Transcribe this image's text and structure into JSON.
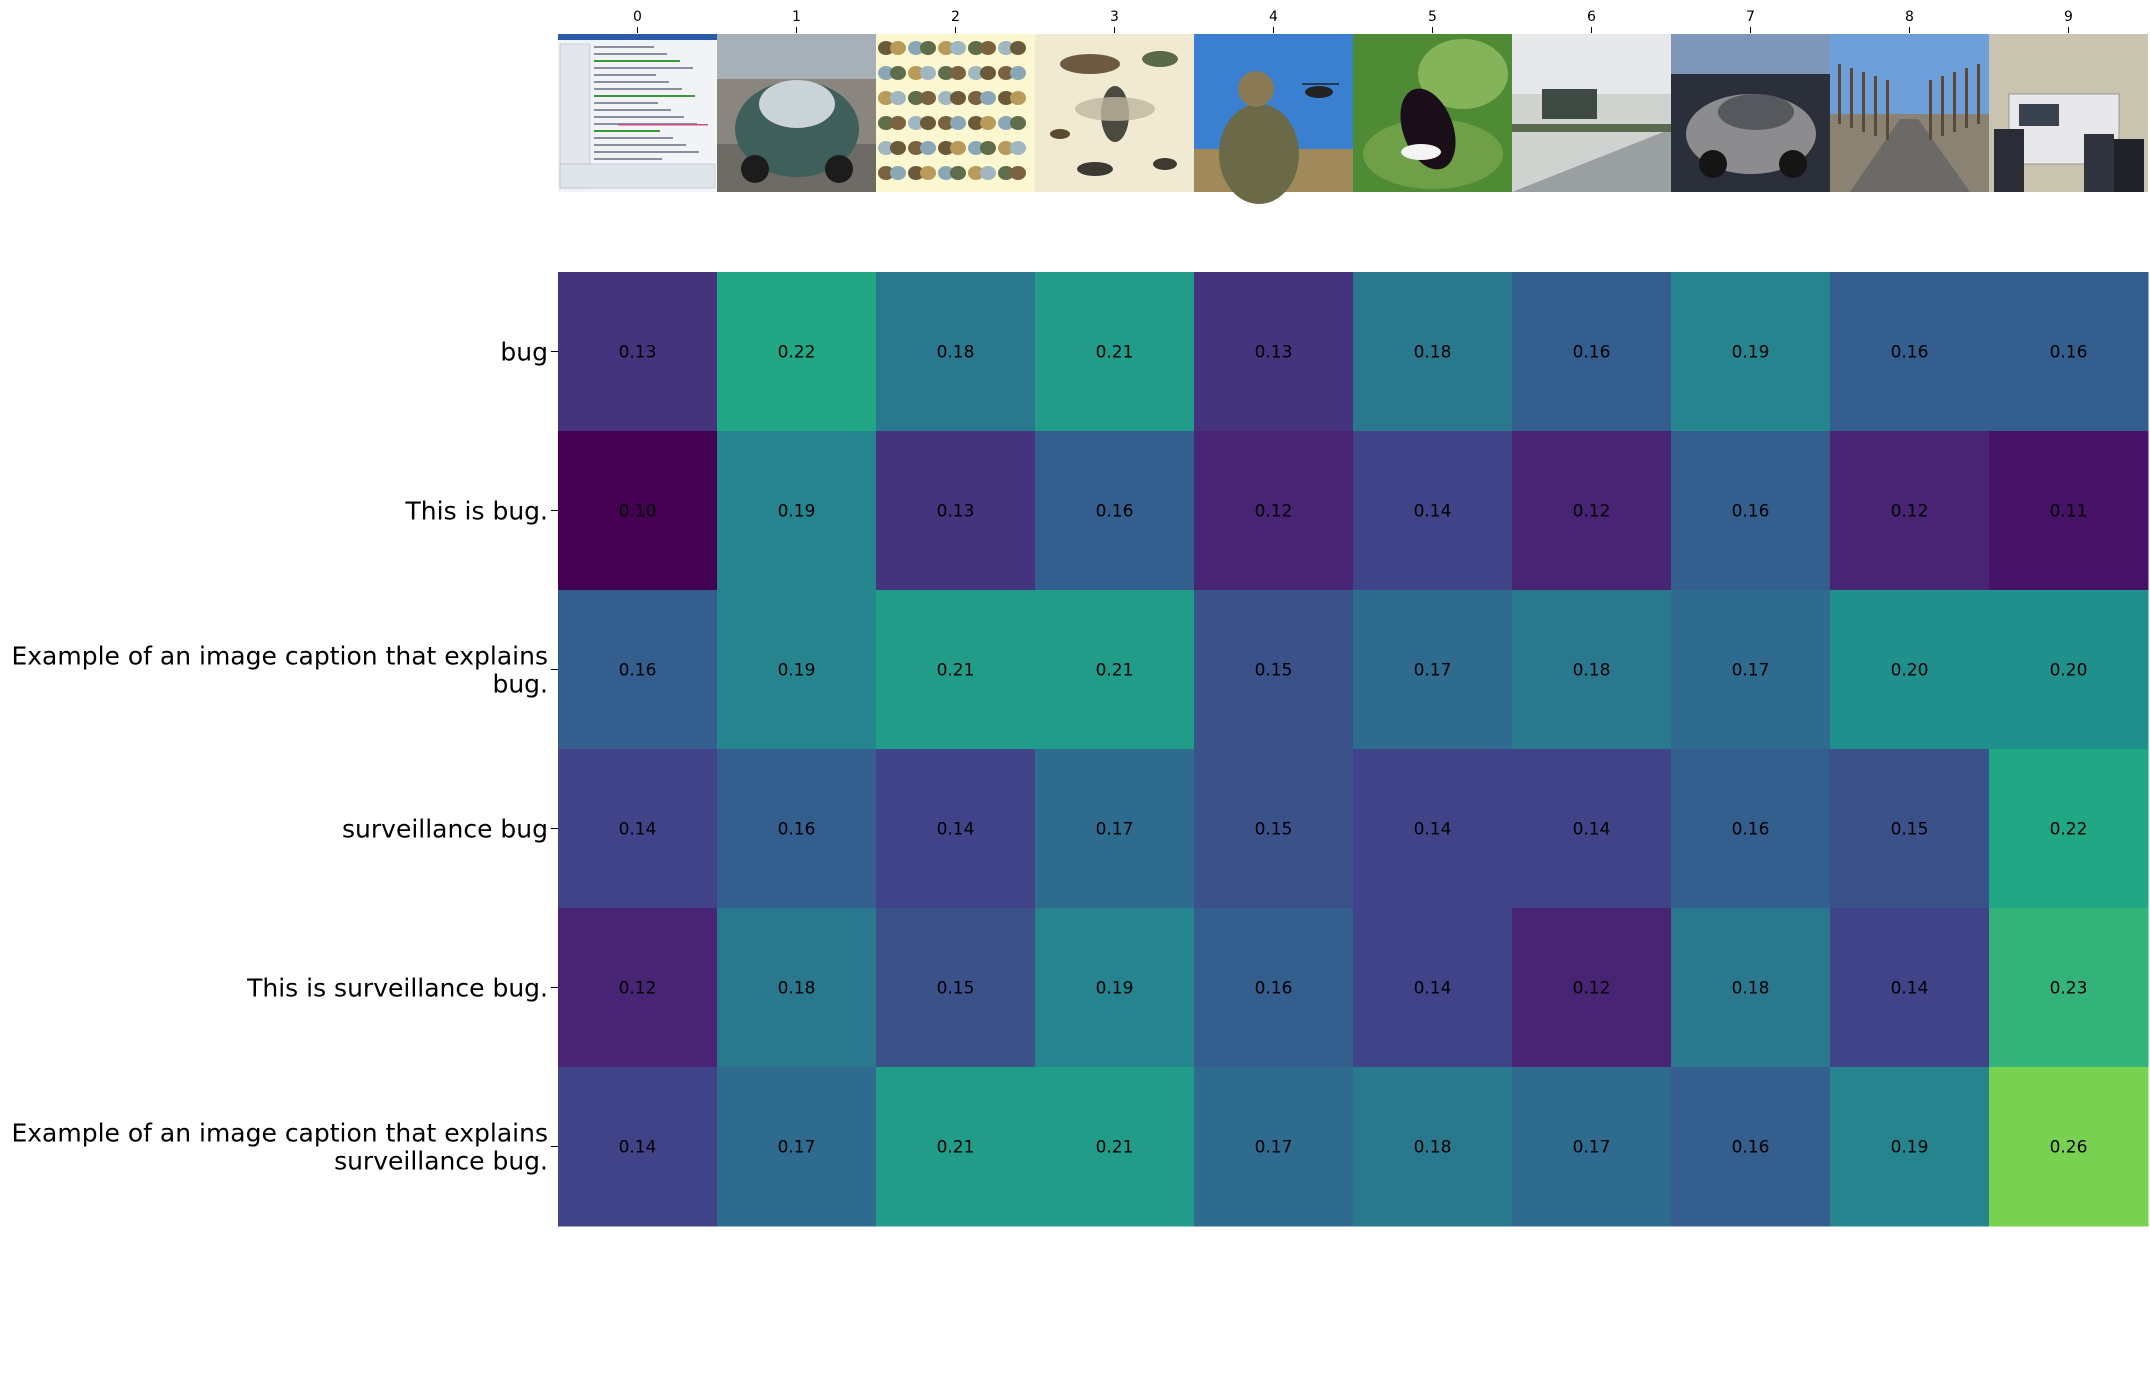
{
  "chart_data": {
    "type": "heatmap",
    "title": "",
    "xlabel": "",
    "ylabel": "",
    "x_tick_labels": [
      "0",
      "1",
      "2",
      "3",
      "4",
      "5",
      "6",
      "7",
      "8",
      "9"
    ],
    "image_thumbnails": [
      "software-window-screenshot",
      "vintage-beetle-car",
      "butterfly-specimen-plate",
      "insect-illustration-plate",
      "soldier-with-helicopter",
      "butterfly-on-leaf",
      "roadside-sign-winter",
      "modern-beetle-car-showroom",
      "tree-lined-road",
      "van-with-people"
    ],
    "row_labels": [
      [
        "bug"
      ],
      [
        "This is bug."
      ],
      [
        "Example of an image caption that explains",
        "bug."
      ],
      [
        "surveillance bug"
      ],
      [
        "This is surveillance bug."
      ],
      [
        "Example of an image caption that explains",
        "surveillance bug."
      ]
    ],
    "values": [
      [
        0.13,
        0.22,
        0.18,
        0.21,
        0.13,
        0.18,
        0.16,
        0.19,
        0.16,
        0.16
      ],
      [
        0.1,
        0.19,
        0.13,
        0.16,
        0.12,
        0.14,
        0.12,
        0.16,
        0.12,
        0.11
      ],
      [
        0.16,
        0.19,
        0.21,
        0.21,
        0.15,
        0.17,
        0.18,
        0.17,
        0.2,
        0.2
      ],
      [
        0.14,
        0.16,
        0.14,
        0.17,
        0.15,
        0.14,
        0.14,
        0.16,
        0.15,
        0.22
      ],
      [
        0.12,
        0.18,
        0.15,
        0.19,
        0.16,
        0.14,
        0.12,
        0.18,
        0.14,
        0.23
      ],
      [
        0.14,
        0.17,
        0.21,
        0.21,
        0.17,
        0.18,
        0.17,
        0.16,
        0.19,
        0.26
      ]
    ],
    "value_range": [
      0.1,
      0.3
    ],
    "colormap": "viridis",
    "grid": false
  }
}
